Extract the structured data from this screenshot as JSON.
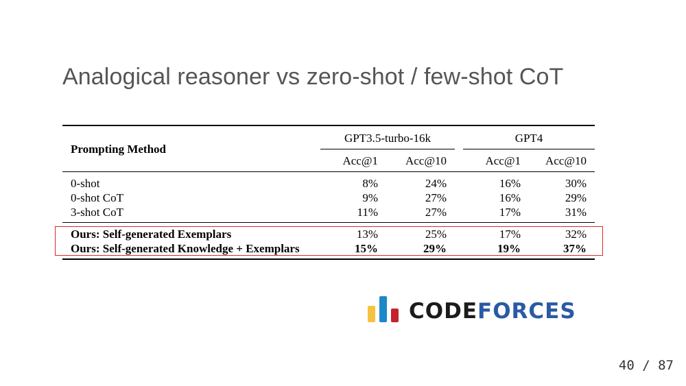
{
  "slide": {
    "title": "Analogical reasoner vs zero-shot / few-shot CoT",
    "page_number": "40 / 87"
  },
  "table": {
    "method_header": "Prompting Method",
    "groups": [
      "GPT3.5-turbo-16k",
      "GPT4"
    ],
    "subheaders": [
      "Acc@1",
      "Acc@10",
      "Acc@1",
      "Acc@10"
    ],
    "baseline_rows": [
      {
        "method": "0-shot",
        "values": [
          "8%",
          "24%",
          "16%",
          "30%"
        ]
      },
      {
        "method": "0-shot CoT",
        "values": [
          "9%",
          "27%",
          "16%",
          "29%"
        ]
      },
      {
        "method": "3-shot CoT",
        "values": [
          "11%",
          "27%",
          "17%",
          "31%"
        ]
      }
    ],
    "ours_rows": [
      {
        "method": "Ours: Self-generated Exemplars",
        "values": [
          "13%",
          "25%",
          "17%",
          "32%"
        ]
      },
      {
        "method": "Ours: Self-generated Knowledge + Exemplars",
        "values": [
          "15%",
          "29%",
          "19%",
          "37%"
        ]
      }
    ]
  },
  "logo": {
    "text_part1": "CODE",
    "text_part2": "FORCES",
    "bar_colors": [
      "#f5c242",
      "#1d88c8",
      "#c4222f"
    ],
    "text_colors": [
      "#1b1b1b",
      "#2a5aa3"
    ]
  },
  "colors": {
    "title": "#555555",
    "highlight_box": "#d62a2a"
  }
}
